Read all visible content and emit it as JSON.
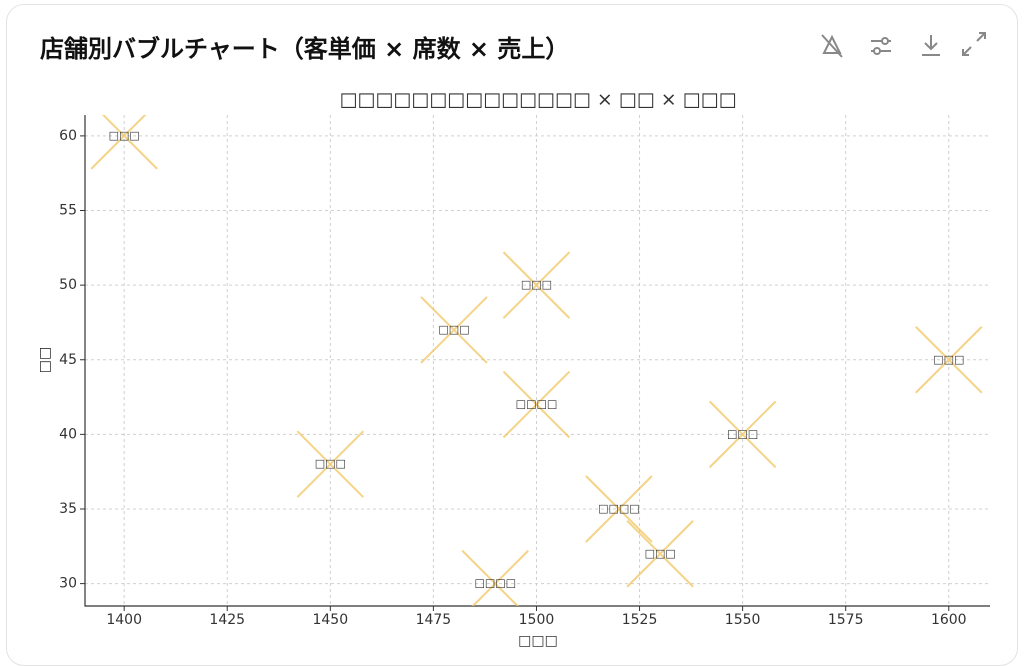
{
  "header": {
    "title": "店舗別バブルチャート（客単価 × 席数 × 売上）"
  },
  "chart_data": {
    "type": "scatter",
    "title": "□□□□□□□□□□□□□□ × □□ × □□□",
    "x_label": "□□□",
    "y_label": "□□",
    "x": [
      1400,
      1450,
      1480,
      1500,
      1500,
      1490,
      1520,
      1530,
      1550,
      1600
    ],
    "values": [
      60,
      38,
      47,
      50,
      42,
      30,
      35,
      32,
      40,
      45
    ],
    "labels": [
      "□□□",
      "□□□",
      "□□□",
      "□□□",
      "□□□□",
      "□□□□",
      "□□□□",
      "□□□",
      "□□□",
      "□□□"
    ],
    "color": "#f2c45e",
    "xlim": [
      1390.5,
      1610
    ],
    "ylim": [
      28.5,
      61.4
    ],
    "xticks": [
      1400,
      1425,
      1450,
      1475,
      1500,
      1525,
      1550,
      1575,
      1600
    ],
    "yticks": [
      30,
      35,
      40,
      45,
      50,
      55,
      60
    ],
    "grid": true
  }
}
